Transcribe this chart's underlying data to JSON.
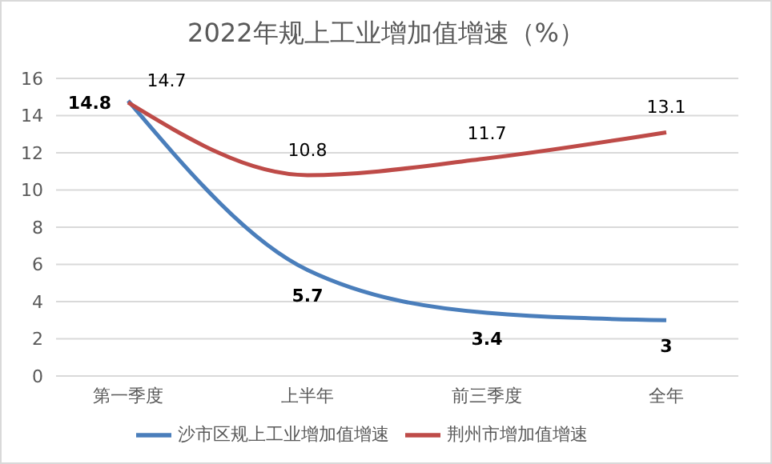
{
  "chart_data": {
    "type": "line",
    "title": "2022年规上工业增加值增速（%）",
    "categories": [
      "第一季度",
      "上半年",
      "前三季度",
      "全年"
    ],
    "series": [
      {
        "name": "沙市区规上工业增加值增速",
        "color": "#4a7ebb",
        "values": [
          14.8,
          5.7,
          3.4,
          3
        ]
      },
      {
        "name": "荆州市增加值增速",
        "color": "#be4b48",
        "values": [
          14.7,
          10.8,
          11.7,
          13.1
        ]
      }
    ],
    "ylim": [
      0,
      16
    ],
    "yticks": [
      0,
      2,
      4,
      6,
      8,
      10,
      12,
      14,
      16
    ],
    "grid": "y",
    "legend": "bottom",
    "marker": "none",
    "line_style": "solid",
    "data_labels": true
  }
}
